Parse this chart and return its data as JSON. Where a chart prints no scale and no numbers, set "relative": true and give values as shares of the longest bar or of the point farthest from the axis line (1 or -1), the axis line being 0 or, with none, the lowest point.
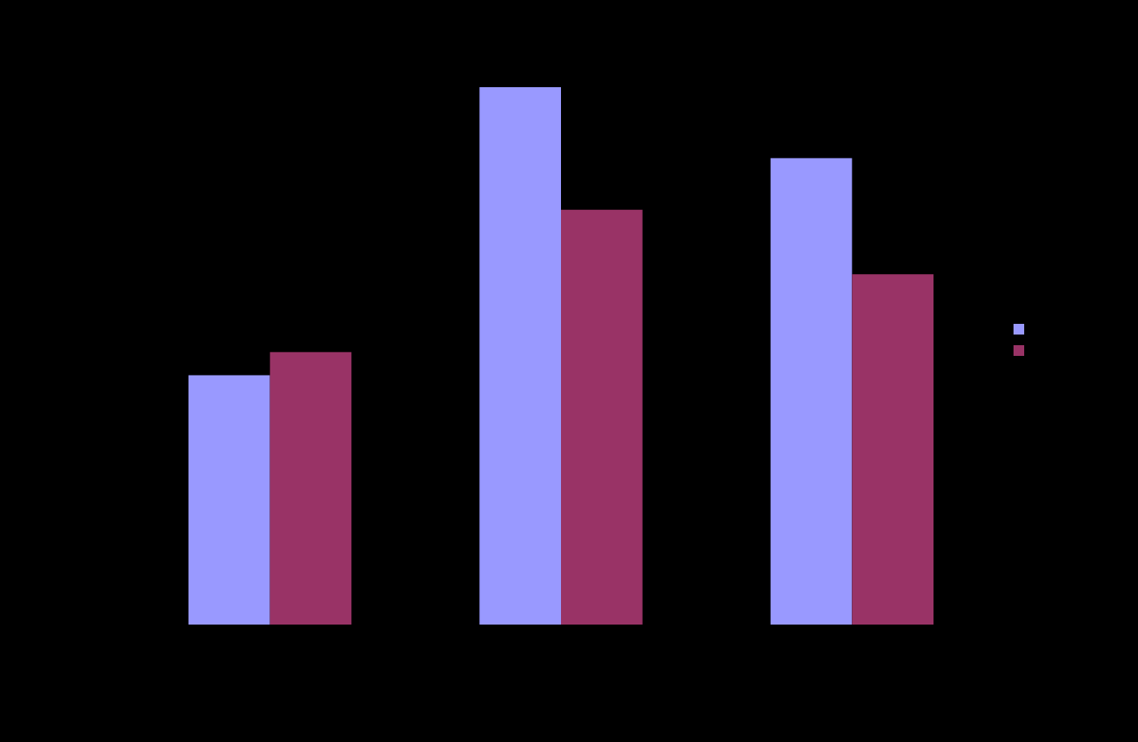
{
  "chart_data": {
    "type": "bar",
    "relative": true,
    "categories": [
      null,
      null,
      null
    ],
    "series": [
      {
        "color": "#9999ff",
        "values": [
          0.464,
          1,
          0.868
        ]
      },
      {
        "color": "#993366",
        "values": [
          0.507,
          0.772,
          0.652
        ]
      }
    ]
  }
}
